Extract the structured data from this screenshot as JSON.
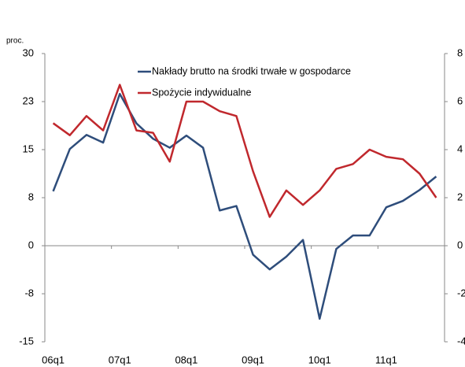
{
  "chart_data": {
    "type": "line",
    "y_label": "proc.",
    "categories": [
      "06q1",
      null,
      null,
      null,
      "07q1",
      null,
      null,
      null,
      "08q1",
      null,
      null,
      null,
      "09q1",
      null,
      null,
      null,
      "10q1",
      null,
      null,
      null,
      "11q1",
      null,
      null,
      null
    ],
    "series": [
      {
        "name": "Nakłady brutto na środki trwałe w gospodarce",
        "color": "#2e4d7b",
        "axis": "y",
        "values": [
          8.5,
          15.1,
          17.3,
          16.1,
          23.7,
          19.1,
          16.7,
          15.3,
          17.2,
          15.3,
          5.5,
          6.2,
          -1.4,
          -3.7,
          -1.7,
          0.9,
          -11.4,
          -0.5,
          1.6,
          1.6,
          6.0,
          7.0,
          8.7,
          10.8
        ]
      },
      {
        "name": "Spożycie indywidualne",
        "color": "#c0282d",
        "axis": "y2",
        "values": [
          5.1,
          4.6,
          5.4,
          4.8,
          6.7,
          4.8,
          4.7,
          3.5,
          6.0,
          6.0,
          5.6,
          5.4,
          3.1,
          1.2,
          2.3,
          1.7,
          2.3,
          3.2,
          3.4,
          4.0,
          3.7,
          3.6,
          3.0,
          2.0
        ]
      }
    ],
    "ylim": [
      -15,
      30
    ],
    "yticks": [
      -15,
      {
        "value": -7.5,
        "label": "-8"
      },
      0,
      {
        "value": 7.5,
        "label": "8"
      },
      15,
      {
        "value": 22.5,
        "label": "23"
      },
      30
    ],
    "y2lim": [
      -4,
      8
    ],
    "y2ticks": [
      -4,
      -2,
      0,
      2,
      4,
      6,
      8
    ],
    "legend": "top-right"
  }
}
